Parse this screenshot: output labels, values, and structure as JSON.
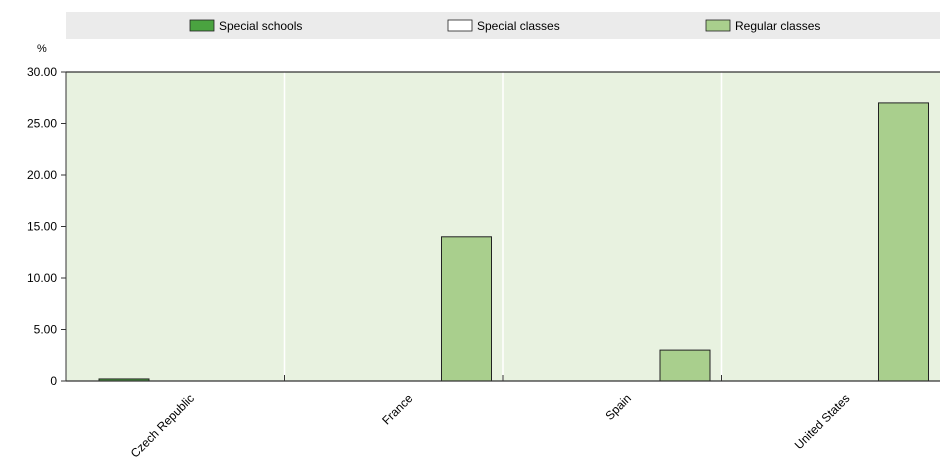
{
  "chart_data": {
    "type": "bar",
    "unit_label": "%",
    "categories": [
      "Czech Republic",
      "France",
      "Spain",
      "United States"
    ],
    "series": [
      {
        "name": "Special schools",
        "color": "#4aa340",
        "values": [
          0.2,
          0,
          0,
          0
        ]
      },
      {
        "name": "Special classes",
        "color": "#ffffff",
        "values": [
          0,
          0,
          0,
          0
        ]
      },
      {
        "name": "Regular classes",
        "color": "#a9cf8d",
        "values": [
          0,
          14.0,
          3.0,
          27.0
        ]
      }
    ],
    "ylim": [
      0,
      30
    ],
    "yticks": [
      "0",
      "5.00",
      "10.00",
      "15.00",
      "20.00",
      "25.00",
      "30.00"
    ],
    "ytick_values": [
      0,
      5,
      10,
      15,
      20,
      25,
      30
    ],
    "plot_background": "#e8f2e0",
    "legend_background": "#ebebeb",
    "legend_position": "top",
    "grid": "vertical category separators"
  }
}
